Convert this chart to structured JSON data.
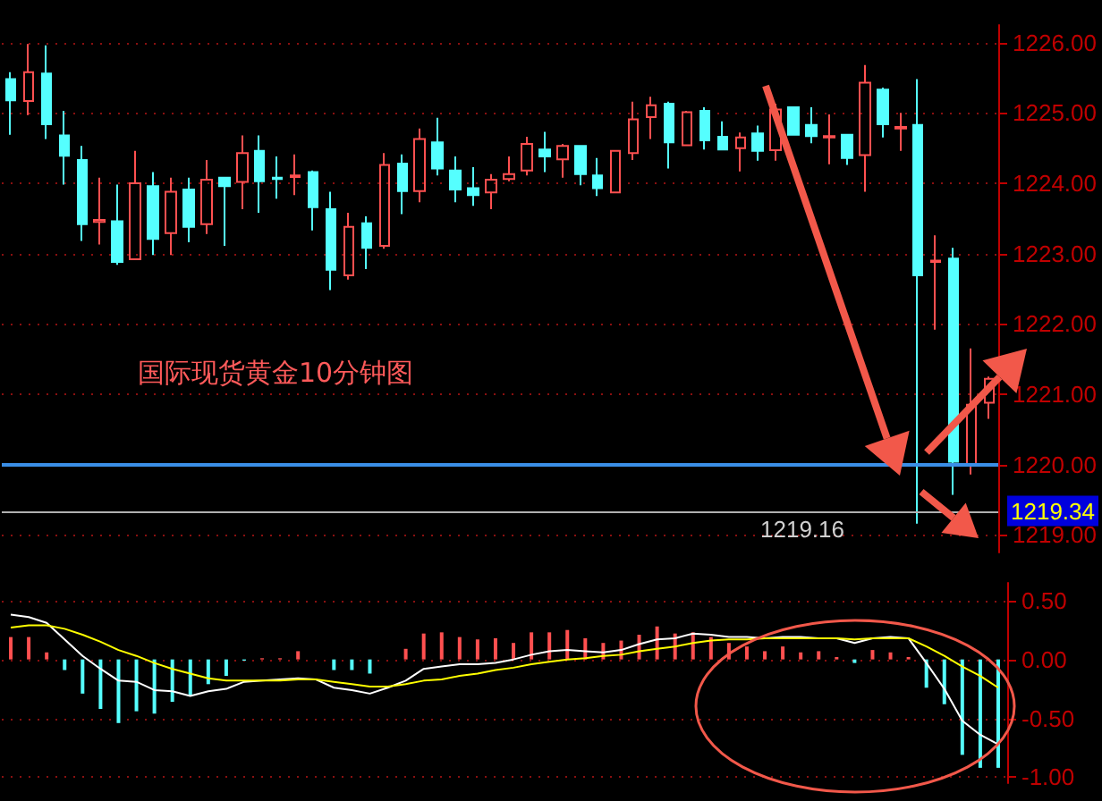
{
  "chart_data": [
    {
      "type": "candlestick",
      "title": "国际现货黄金10分钟图",
      "categories": [
        null,
        null,
        null,
        null,
        null,
        null,
        null,
        null,
        null,
        null,
        null,
        null,
        null,
        null,
        null,
        null,
        null,
        null,
        null,
        null,
        null,
        null,
        null,
        null,
        null,
        null,
        null,
        null,
        null,
        null,
        null,
        null,
        null,
        null,
        null,
        null,
        null,
        null,
        null,
        null,
        null,
        null,
        null,
        null,
        null,
        null,
        null,
        null,
        null,
        null,
        null,
        null,
        null,
        null,
        null,
        null
      ],
      "ohlc": [
        [
          1225.48,
          1225.58,
          1224.69,
          1225.18
        ],
        [
          1225.17,
          1225.98,
          1224.97,
          1225.58
        ],
        [
          1225.56,
          1225.96,
          1224.63,
          1224.84
        ],
        [
          1224.68,
          1225.03,
          1223.98,
          1224.39
        ],
        [
          1224.33,
          1224.53,
          1223.18,
          1223.42
        ],
        [
          1223.45,
          1224.08,
          1223.13,
          1223.48
        ],
        [
          1223.46,
          1223.98,
          1222.84,
          1222.88
        ],
        [
          1222.92,
          1224.46,
          1222.92,
          1224.0
        ],
        [
          1223.96,
          1224.16,
          1222.98,
          1223.21
        ],
        [
          1223.29,
          1224.08,
          1222.98,
          1223.88
        ],
        [
          1223.91,
          1224.08,
          1223.16,
          1223.38
        ],
        [
          1223.42,
          1224.33,
          1223.28,
          1224.05
        ],
        [
          1224.08,
          1224.08,
          1223.11,
          1223.96
        ],
        [
          1224.02,
          1224.68,
          1223.63,
          1224.43
        ],
        [
          1224.46,
          1224.68,
          1223.58,
          1224.03
        ],
        [
          1224.08,
          1224.38,
          1223.78,
          1224.06
        ],
        [
          1224.09,
          1224.41,
          1223.83,
          1224.11
        ],
        [
          1224.16,
          1224.18,
          1223.33,
          1223.66
        ],
        [
          1223.63,
          1223.88,
          1222.48,
          1222.77
        ],
        [
          1222.69,
          1223.58,
          1222.63,
          1223.38
        ],
        [
          1223.43,
          1223.53,
          1222.78,
          1223.08
        ],
        [
          1223.11,
          1224.43,
          1223.07,
          1224.26
        ],
        [
          1224.28,
          1224.41,
          1223.56,
          1223.89
        ],
        [
          1223.89,
          1224.78,
          1223.73,
          1224.63
        ],
        [
          1224.58,
          1224.93,
          1224.11,
          1224.21
        ],
        [
          1224.18,
          1224.38,
          1223.73,
          1223.91
        ],
        [
          1223.93,
          1224.23,
          1223.68,
          1223.83
        ],
        [
          1223.87,
          1224.13,
          1223.63,
          1224.05
        ],
        [
          1224.06,
          1224.38,
          1224.03,
          1224.13
        ],
        [
          1224.18,
          1224.66,
          1224.11,
          1224.56
        ],
        [
          1224.48,
          1224.73,
          1224.16,
          1224.38
        ],
        [
          1224.34,
          1224.56,
          1224.08,
          1224.53
        ],
        [
          1224.53,
          1224.53,
          1223.97,
          1224.13
        ],
        [
          1224.11,
          1224.36,
          1223.82,
          1223.93
        ],
        [
          1223.87,
          1224.46,
          1223.87,
          1224.46
        ],
        [
          1224.43,
          1225.16,
          1224.33,
          1224.91
        ],
        [
          1224.94,
          1225.23,
          1224.63,
          1225.11
        ],
        [
          1225.13,
          1225.16,
          1224.21,
          1224.58
        ],
        [
          1224.54,
          1225.03,
          1224.54,
          1225.01
        ],
        [
          1225.03,
          1225.08,
          1224.48,
          1224.61
        ],
        [
          1224.66,
          1224.88,
          1224.48,
          1224.48
        ],
        [
          1224.5,
          1224.72,
          1224.17,
          1224.65
        ],
        [
          1224.71,
          1224.82,
          1224.32,
          1224.46
        ],
        [
          1224.47,
          1225.13,
          1224.32,
          1225.05
        ],
        [
          1225.08,
          1225.08,
          1224.69,
          1224.69
        ],
        [
          1224.83,
          1225.08,
          1224.57,
          1224.67
        ],
        [
          1224.65,
          1224.98,
          1224.27,
          1224.67
        ],
        [
          1224.69,
          1224.69,
          1224.26,
          1224.36
        ],
        [
          1224.4,
          1225.68,
          1223.88,
          1225.43
        ],
        [
          1225.33,
          1225.36,
          1224.65,
          1224.84
        ],
        [
          1224.78,
          1225.0,
          1224.46,
          1224.8
        ],
        [
          1224.83,
          1225.48,
          1219.16,
          1222.69
        ],
        [
          1222.88,
          1223.26,
          1221.92,
          1222.9
        ],
        [
          1222.93,
          1223.08,
          1219.57,
          1220.04
        ],
        [
          1220.01,
          1221.65,
          1219.86,
          1220.85
        ],
        [
          1220.88,
          1221.25,
          1220.65,
          1221.22
        ]
      ],
      "colors": [
        "#55ffff",
        "#ff5050",
        "#55ffff",
        "#55ffff",
        "#55ffff",
        "#ff5050",
        "#55ffff",
        "#ff5050",
        "#55ffff",
        "#ff5050",
        "#55ffff",
        "#ff5050",
        "#55ffff",
        "#ff5050",
        "#55ffff",
        "#55ffff",
        "#ff5050",
        "#55ffff",
        "#55ffff",
        "#ff5050",
        "#55ffff",
        "#ff5050",
        "#55ffff",
        "#ff5050",
        "#55ffff",
        "#55ffff",
        "#55ffff",
        "#ff5050",
        "#ff5050",
        "#ff5050",
        "#55ffff",
        "#ff5050",
        "#55ffff",
        "#55ffff",
        "#ff5050",
        "#ff5050",
        "#ff5050",
        "#55ffff",
        "#ff5050",
        "#55ffff",
        "#55ffff",
        "#ff5050",
        "#55ffff",
        "#ff5050",
        "#55ffff",
        "#55ffff",
        "#ff5050",
        "#55ffff",
        "#ff5050",
        "#55ffff",
        "#ff5050",
        "#55ffff",
        "#ff5050",
        "#55ffff",
        "#ff5050",
        "#ff5050"
      ],
      "ylim": [
        1218.75,
        1226.25
      ],
      "yticks": [
        {
          "value": 1219,
          "label": "1219.00"
        },
        {
          "value": 1220,
          "label": "1220.00"
        },
        {
          "value": 1221,
          "label": "1221.00"
        },
        {
          "value": 1222,
          "label": "1222.00"
        },
        {
          "value": 1223,
          "label": "1223.00"
        },
        {
          "value": 1224,
          "label": "1224.00"
        },
        {
          "value": 1225,
          "label": "1225.00"
        },
        {
          "value": 1226,
          "label": "1226.00"
        }
      ],
      "grid": "y",
      "tick_labels": "y",
      "ref_lines": [
        {
          "axis": "y",
          "value": 1220,
          "color": "#3a8ee6"
        },
        {
          "axis": "y",
          "value": 1219.34,
          "label": "1219.34",
          "color": "#b0b0b0"
        }
      ],
      "annotations": [
        "1219.16"
      ]
    },
    {
      "type": "bar",
      "categories": [
        null,
        null,
        null,
        null,
        null,
        null,
        null,
        null,
        null,
        null,
        null,
        null,
        null,
        null,
        null,
        null,
        null,
        null,
        null,
        null,
        null,
        null,
        null,
        null,
        null,
        null,
        null,
        null,
        null,
        null,
        null,
        null,
        null,
        null,
        null,
        null,
        null,
        null,
        null,
        null,
        null,
        null,
        null,
        null,
        null,
        null,
        null,
        null,
        null,
        null,
        null,
        null,
        null,
        null,
        null,
        null
      ],
      "series": [
        {
          "type": "bar",
          "values": [
            0.19,
            0.19,
            0.06,
            -0.09,
            -0.29,
            -0.42,
            -0.54,
            -0.44,
            -0.46,
            -0.36,
            -0.31,
            -0.21,
            -0.14,
            -0.01,
            0.01,
            0.01,
            0.07,
            0,
            -0.09,
            -0.09,
            -0.12,
            0,
            0.09,
            0.22,
            0.23,
            0.19,
            0.17,
            0.18,
            0.14,
            0.23,
            0.23,
            0.25,
            0.18,
            0.14,
            0.16,
            0.21,
            0.28,
            0.22,
            0.23,
            0.19,
            0.14,
            0.11,
            0.07,
            0.11,
            0.06,
            0.07,
            0.02,
            -0.03,
            0.08,
            0.06,
            0.02,
            -0.24,
            -0.38,
            -0.81,
            -0.92,
            -0.92
          ],
          "colors": [
            "#ff5050",
            "#ff5050",
            "#ff5050",
            "#55ffff",
            "#55ffff",
            "#55ffff",
            "#55ffff",
            "#55ffff",
            "#55ffff",
            "#55ffff",
            "#55ffff",
            "#55ffff",
            "#55ffff",
            "#55ffff",
            "#ff5050",
            "#ff5050",
            "#ff5050",
            "#ff5050",
            "#55ffff",
            "#55ffff",
            "#55ffff",
            "#ff5050",
            "#ff5050",
            "#ff5050",
            "#ff5050",
            "#ff5050",
            "#ff5050",
            "#ff5050",
            "#ff5050",
            "#ff5050",
            "#ff5050",
            "#ff5050",
            "#ff5050",
            "#ff5050",
            "#ff5050",
            "#ff5050",
            "#ff5050",
            "#ff5050",
            "#ff5050",
            "#ff5050",
            "#ff5050",
            "#ff5050",
            "#ff5050",
            "#ff5050",
            "#ff5050",
            "#ff5050",
            "#ff5050",
            "#55ffff",
            "#ff5050",
            "#ff5050",
            "#ff5050",
            "#55ffff",
            "#55ffff",
            "#55ffff",
            "#55ffff",
            "#55ffff"
          ]
        },
        {
          "type": "line",
          "color": "#ffffff",
          "values": [
            0.38,
            0.36,
            0.31,
            0.17,
            0.03,
            -0.08,
            -0.18,
            -0.19,
            -0.26,
            -0.27,
            -0.31,
            -0.27,
            -0.25,
            -0.19,
            -0.18,
            -0.17,
            -0.16,
            -0.17,
            -0.24,
            -0.26,
            -0.29,
            -0.24,
            -0.18,
            -0.08,
            -0.06,
            -0.04,
            -0.04,
            -0.03,
            0,
            0.04,
            0.07,
            0.08,
            0.07,
            0.06,
            0.08,
            0.13,
            0.17,
            0.18,
            0.22,
            0.21,
            0.19,
            0.19,
            0.18,
            0.19,
            0.19,
            0.18,
            0.18,
            0.14,
            0.18,
            0.19,
            0.18,
            -0.03,
            -0.25,
            -0.52,
            -0.64,
            -0.72
          ]
        },
        {
          "type": "line",
          "color": "#ffff00",
          "values": [
            0.27,
            0.29,
            0.29,
            0.26,
            0.21,
            0.15,
            0.08,
            0.03,
            -0.03,
            -0.08,
            -0.12,
            -0.16,
            -0.18,
            -0.18,
            -0.18,
            -0.18,
            -0.17,
            -0.17,
            -0.19,
            -0.21,
            -0.23,
            -0.23,
            -0.21,
            -0.18,
            -0.17,
            -0.14,
            -0.12,
            -0.09,
            -0.07,
            -0.04,
            -0.02,
            0,
            0.01,
            0.03,
            0.04,
            0.07,
            0.09,
            0.11,
            0.14,
            0.16,
            0.17,
            0.17,
            0.18,
            0.18,
            0.18,
            0.18,
            0.18,
            0.17,
            0.18,
            0.18,
            0.18,
            0.11,
            0.03,
            -0.06,
            -0.14,
            -0.24
          ]
        }
      ],
      "ylim": [
        -1.05,
        0.65
      ],
      "yticks": [
        {
          "value": 0.5,
          "label": "0.50"
        },
        {
          "value": 0,
          "label": "0.00"
        },
        {
          "value": -0.5,
          "label": "-0.50"
        },
        {
          "value": -1,
          "label": "-1.00"
        }
      ],
      "grid": "y",
      "tick_labels": "y",
      "marker": "none"
    }
  ]
}
